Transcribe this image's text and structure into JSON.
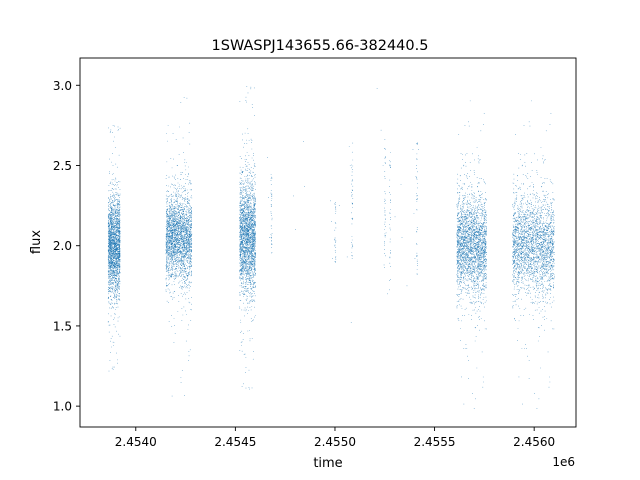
{
  "chart_data": {
    "type": "scatter",
    "title": "1SWASPJ143655.66-382440.5",
    "xlabel": "time",
    "ylabel": "flux",
    "x_offset_label": "1e6",
    "xlim": [
      2453720,
      2456210
    ],
    "ylim": [
      0.87,
      3.17
    ],
    "x_ticks": [
      2.454,
      2.4545,
      2.455,
      2.4555,
      2.456
    ],
    "x_tick_labels": [
      "2.4540",
      "2.4545",
      "2.4550",
      "2.4555",
      "2.4560"
    ],
    "y_ticks": [
      1.0,
      1.5,
      2.0,
      2.5,
      3.0
    ],
    "y_tick_labels": [
      "1.0",
      "1.5",
      "2.0",
      "2.5",
      "3.0"
    ],
    "grid": false,
    "legend": "none",
    "marker_color": "#1f77b4",
    "marker_size": 0.6,
    "seasons": [
      {
        "x_start": 2453860,
        "x_end": 2453920,
        "center": 2.0,
        "spread": 0.15,
        "ymin": 0.98,
        "ymax": 2.75,
        "count": 2200
      },
      {
        "x_start": 2454150,
        "x_end": 2454280,
        "center": 2.05,
        "spread": 0.13,
        "ymin": 1.02,
        "ymax": 2.95,
        "count": 3200
      },
      {
        "x_start": 2454520,
        "x_end": 2454600,
        "center": 2.05,
        "spread": 0.17,
        "ymin": 1.1,
        "ymax": 3.02,
        "count": 2400
      },
      {
        "x_start": 2455610,
        "x_end": 2455760,
        "center": 2.0,
        "spread": 0.15,
        "ymin": 0.97,
        "ymax": 3.06,
        "count": 4200
      },
      {
        "x_start": 2455890,
        "x_end": 2456100,
        "center": 2.0,
        "spread": 0.15,
        "ymin": 0.97,
        "ymax": 3.07,
        "count": 5200
      }
    ],
    "scattered_points": [
      [
        2454660,
        2.55
      ],
      [
        2454665,
        2.3
      ],
      [
        2454670,
        2.05
      ],
      [
        2454840,
        2.65
      ],
      [
        2454845,
        2.37
      ],
      [
        2454975,
        2.28
      ],
      [
        2454980,
        2.15
      ],
      [
        2454985,
        1.92
      ],
      [
        2455020,
        2.25
      ],
      [
        2455060,
        1.93
      ],
      [
        2455070,
        2.62
      ],
      [
        2455075,
        2.5
      ],
      [
        2455080,
        1.52
      ],
      [
        2455210,
        2.98
      ],
      [
        2455230,
        2.72
      ],
      [
        2455240,
        2.5
      ],
      [
        2455245,
        1.88
      ],
      [
        2455250,
        2.42
      ],
      [
        2455255,
        2.08
      ],
      [
        2455262,
        1.7
      ],
      [
        2455300,
        2.18
      ],
      [
        2455360,
        1.75
      ],
      [
        2455390,
        2.6
      ],
      [
        2455395,
        2.2
      ],
      [
        2455400,
        1.92
      ],
      [
        2455405,
        2.43
      ],
      [
        2455410,
        2.31
      ],
      [
        2455418,
        2.6
      ],
      [
        2454790,
        2.31
      ],
      [
        2454800,
        2.1
      ],
      [
        2455330,
        2.38
      ],
      [
        2455335,
        2.05
      ]
    ],
    "column_points": [
      {
        "x": 2454680,
        "y_from": 1.95,
        "y_to": 2.45,
        "count": 40
      },
      {
        "x": 2455000,
        "y_from": 1.85,
        "y_to": 2.3,
        "count": 30
      },
      {
        "x": 2455085,
        "y_from": 1.9,
        "y_to": 2.65,
        "count": 45
      },
      {
        "x": 2455250,
        "y_from": 1.85,
        "y_to": 2.7,
        "count": 40
      },
      {
        "x": 2455275,
        "y_from": 1.7,
        "y_to": 2.6,
        "count": 35
      },
      {
        "x": 2455410,
        "y_from": 1.8,
        "y_to": 2.65,
        "count": 40
      }
    ]
  }
}
